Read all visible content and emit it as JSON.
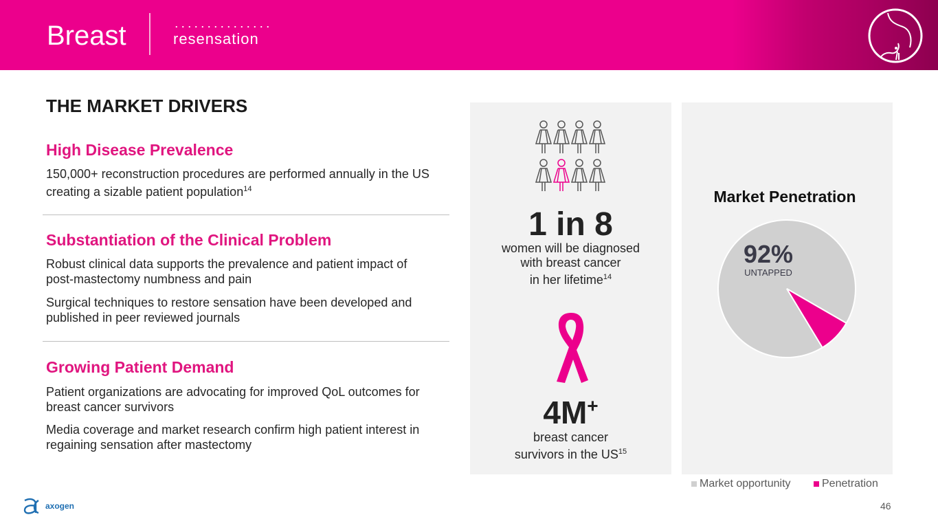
{
  "header": {
    "title": "Breast",
    "brand": "resensation"
  },
  "section_title": "THE MARKET DRIVERS",
  "drivers": [
    {
      "heading": "High Disease Prevalence",
      "paragraphs": [
        {
          "text": "150,000+ reconstruction procedures are performed annually in the US creating a sizable patient population",
          "ref": "14"
        }
      ]
    },
    {
      "heading": "Substantiation of the Clinical Problem",
      "paragraphs": [
        {
          "text": "Robust clinical data supports the prevalence and patient impact of post-mastectomy numbness and pain",
          "ref": ""
        },
        {
          "text": "Surgical techniques to restore sensation have been developed and published in peer reviewed journals",
          "ref": ""
        }
      ]
    },
    {
      "heading": "Growing Patient Demand",
      "paragraphs": [
        {
          "text": "Patient organizations are advocating for improved QoL outcomes for breast cancer survivors",
          "ref": ""
        },
        {
          "text": "Media coverage and market research confirm high patient interest in regaining sensation after mastectomy",
          "ref": ""
        }
      ]
    }
  ],
  "stats": {
    "stat1": {
      "value": "1 in 8",
      "line1": "women will be diagnosed",
      "line2": "with breast cancer",
      "line3": "in her lifetime",
      "ref": "14"
    },
    "stat2": {
      "value": "4M",
      "sup": "+",
      "line1": "breast cancer",
      "line2": "survivors in the US",
      "ref": "15"
    }
  },
  "chart_data": {
    "type": "pie",
    "title": "Market Penetration",
    "categories": [
      "Market opportunity",
      "Penetration"
    ],
    "values": [
      92,
      8
    ],
    "colors": [
      "#D0D0D0",
      "#EC008C"
    ],
    "annotation": {
      "value": "92%",
      "label": "UNTAPPED"
    },
    "legend": "bottom"
  },
  "footer": {
    "page": "46",
    "logo": "axogen"
  },
  "colors": {
    "brand": "#EC008C",
    "heading": "#E0157F",
    "panel": "#F2F2F2"
  }
}
